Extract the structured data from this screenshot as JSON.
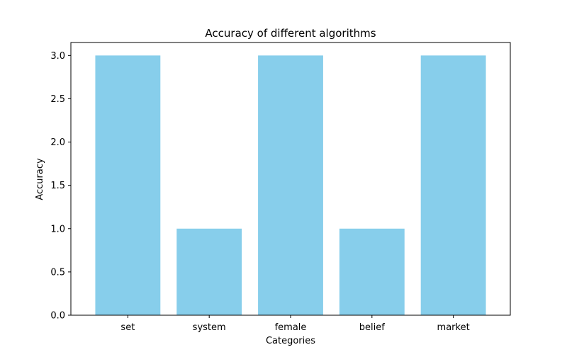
{
  "chart_data": {
    "type": "bar",
    "title": "Accuracy of different algorithms",
    "xlabel": "Categories",
    "ylabel": "Accuracy",
    "categories": [
      "set",
      "system",
      "female",
      "belief",
      "market"
    ],
    "values": [
      3,
      1,
      3,
      1,
      3
    ],
    "ylim": [
      0,
      3.15
    ],
    "yticks": [
      0.0,
      0.5,
      1.0,
      1.5,
      2.0,
      2.5,
      3.0
    ],
    "bar_color": "#87CEEB",
    "grid": false,
    "legend": "none"
  }
}
